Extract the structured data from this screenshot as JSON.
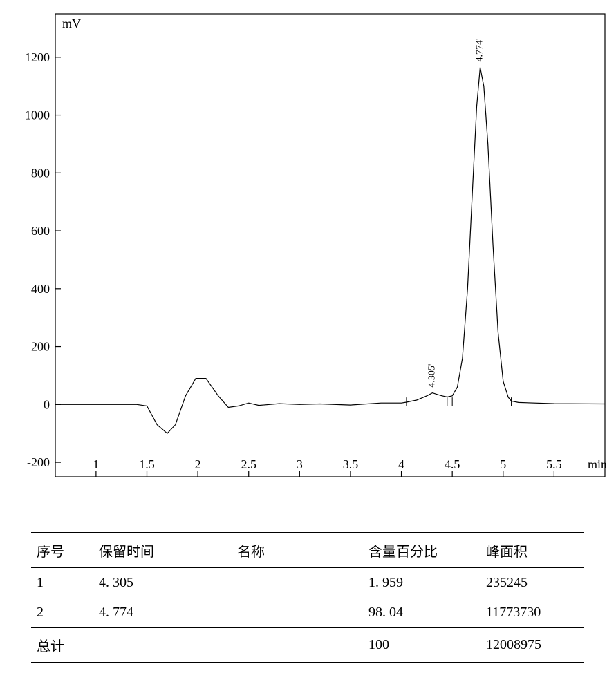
{
  "chart": {
    "type": "line",
    "ylabel": "mV",
    "xlabel": "min",
    "xlim": [
      0.6,
      6.0
    ],
    "ylim": [
      -250,
      1350
    ],
    "xticks": [
      1,
      1.5,
      2,
      2.5,
      3,
      3.5,
      4,
      4.5,
      5,
      5.5
    ],
    "xtick_labels": [
      "1",
      "1.5",
      "2",
      "2.5",
      "3",
      "3.5",
      "4",
      "4.5",
      "5",
      "5.5"
    ],
    "yticks": [
      -200,
      0,
      200,
      400,
      600,
      800,
      1000,
      1200
    ],
    "ytick_labels": [
      "-200",
      "0",
      "200",
      "400",
      "600",
      "800",
      "1000",
      "1200"
    ],
    "background_color": "#ffffff",
    "axis_color": "#000000",
    "line_color": "#000000",
    "line_width": 1.2,
    "tick_fontsize": 18,
    "unit_fontsize": 18,
    "peak_label_fontsize": 14,
    "peaks": [
      {
        "rt": 4.305,
        "label": "4.305'"
      },
      {
        "rt": 4.774,
        "label": "4.774'"
      }
    ],
    "peak_markers": [
      {
        "start": 4.05,
        "end": 4.45
      },
      {
        "start": 4.5,
        "end": 5.08
      }
    ],
    "trace": [
      {
        "x": 0.6,
        "y": 0
      },
      {
        "x": 1.4,
        "y": 0
      },
      {
        "x": 1.5,
        "y": -5
      },
      {
        "x": 1.6,
        "y": -70
      },
      {
        "x": 1.7,
        "y": -100
      },
      {
        "x": 1.78,
        "y": -70
      },
      {
        "x": 1.88,
        "y": 30
      },
      {
        "x": 1.98,
        "y": 90
      },
      {
        "x": 2.08,
        "y": 90
      },
      {
        "x": 2.2,
        "y": 30
      },
      {
        "x": 2.3,
        "y": -10
      },
      {
        "x": 2.4,
        "y": -5
      },
      {
        "x": 2.5,
        "y": 5
      },
      {
        "x": 2.6,
        "y": -3
      },
      {
        "x": 2.8,
        "y": 3
      },
      {
        "x": 3.0,
        "y": 0
      },
      {
        "x": 3.2,
        "y": 2
      },
      {
        "x": 3.5,
        "y": -2
      },
      {
        "x": 3.8,
        "y": 5
      },
      {
        "x": 4.0,
        "y": 5
      },
      {
        "x": 4.05,
        "y": 8
      },
      {
        "x": 4.15,
        "y": 15
      },
      {
        "x": 4.25,
        "y": 30
      },
      {
        "x": 4.305,
        "y": 40
      },
      {
        "x": 4.35,
        "y": 35
      },
      {
        "x": 4.4,
        "y": 30
      },
      {
        "x": 4.45,
        "y": 26
      },
      {
        "x": 4.5,
        "y": 30
      },
      {
        "x": 4.55,
        "y": 60
      },
      {
        "x": 4.6,
        "y": 160
      },
      {
        "x": 4.65,
        "y": 400
      },
      {
        "x": 4.7,
        "y": 750
      },
      {
        "x": 4.74,
        "y": 1030
      },
      {
        "x": 4.774,
        "y": 1165
      },
      {
        "x": 4.81,
        "y": 1100
      },
      {
        "x": 4.85,
        "y": 900
      },
      {
        "x": 4.9,
        "y": 550
      },
      {
        "x": 4.95,
        "y": 250
      },
      {
        "x": 5.0,
        "y": 80
      },
      {
        "x": 5.05,
        "y": 25
      },
      {
        "x": 5.08,
        "y": 12
      },
      {
        "x": 5.15,
        "y": 7
      },
      {
        "x": 5.5,
        "y": 3
      },
      {
        "x": 6.0,
        "y": 2
      }
    ]
  },
  "table": {
    "columns": [
      "序号",
      "保留时间",
      "名称",
      "含量百分比",
      "峰面积"
    ],
    "rows": [
      [
        "1",
        "4. 305",
        "",
        "1. 959",
        "235245"
      ],
      [
        "2",
        "4. 774",
        "",
        "98. 04",
        "11773730"
      ]
    ],
    "total_label": "总计",
    "total_row": [
      "总计",
      "",
      "",
      "100",
      "12008975"
    ]
  }
}
